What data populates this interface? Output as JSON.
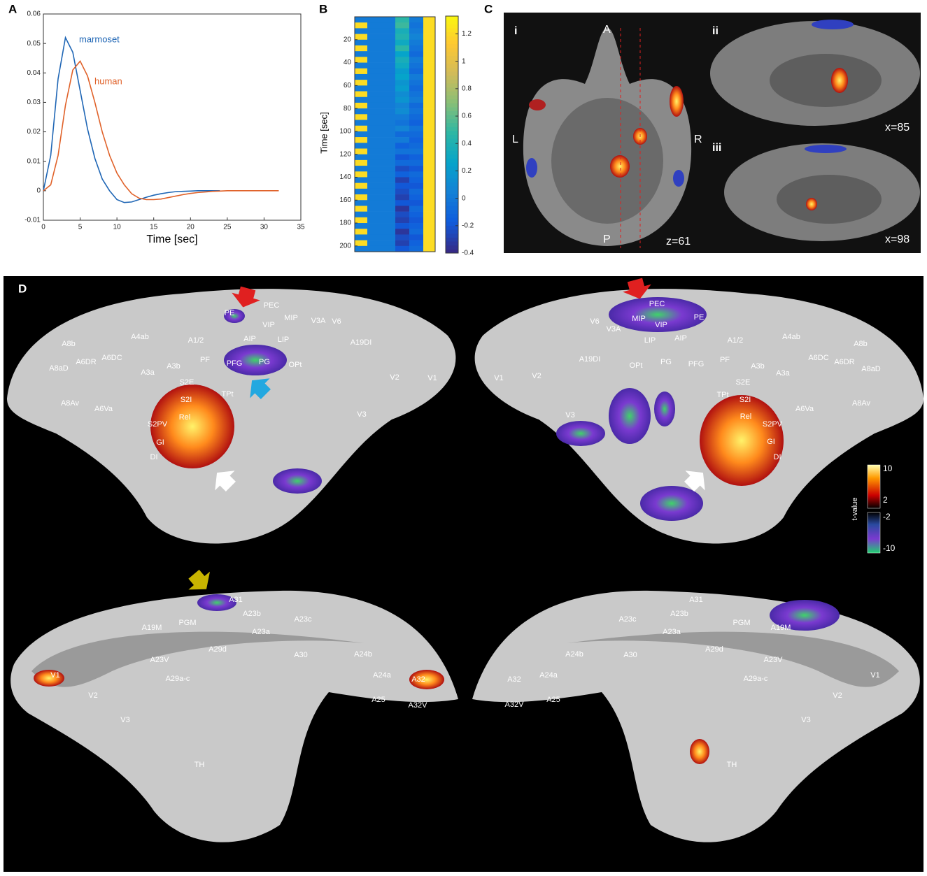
{
  "panel_labels": [
    "A",
    "B",
    "C",
    "D"
  ],
  "chart_data": [
    {
      "type": "line",
      "xlabel": "Time [sec]",
      "xlim": [
        0,
        35
      ],
      "xticks": [
        0,
        5,
        10,
        15,
        20,
        25,
        30,
        35
      ],
      "ylim": [
        -0.01,
        0.06
      ],
      "yticks": [
        -0.01,
        0,
        0.01,
        0.02,
        0.03,
        0.04,
        0.05,
        0.06
      ],
      "x": [
        0,
        1,
        2,
        3,
        4,
        5,
        6,
        7,
        8,
        9,
        10,
        11,
        12,
        13,
        14,
        15,
        16,
        17,
        18,
        19,
        20,
        21,
        22,
        23,
        24,
        25,
        26,
        27,
        28,
        29,
        30,
        31,
        32
      ],
      "series": [
        {
          "name": "marmoset",
          "color": "#1f66b5",
          "values": [
            0,
            0.012,
            0.038,
            0.052,
            0.047,
            0.034,
            0.021,
            0.011,
            0.004,
            0,
            -0.003,
            -0.004,
            -0.0038,
            -0.003,
            -0.0022,
            -0.0015,
            -0.001,
            -0.0006,
            -0.0003,
            -0.0002,
            -0.0001,
            0,
            0,
            0,
            0,
            null,
            null,
            null,
            null,
            null,
            null,
            null,
            null
          ]
        },
        {
          "name": "human",
          "color": "#e0622a",
          "values": [
            0,
            0.002,
            0.012,
            0.029,
            0.041,
            0.044,
            0.039,
            0.03,
            0.02,
            0.012,
            0.006,
            0.002,
            -0.001,
            -0.0025,
            -0.003,
            -0.003,
            -0.0028,
            -0.0023,
            -0.0018,
            -0.0013,
            -0.0009,
            -0.0006,
            -0.0004,
            -0.0002,
            -0.0001,
            0,
            0,
            0,
            0,
            0,
            0,
            0,
            0
          ]
        }
      ]
    },
    {
      "type": "heatmap",
      "ylabel": "Time [sec]",
      "ylim": [
        0,
        205
      ],
      "yticks": [
        20,
        40,
        60,
        80,
        100,
        120,
        140,
        160,
        180,
        200
      ],
      "clim": [
        -0.4,
        1.33
      ],
      "cticks": [
        -0.4,
        -0.2,
        0,
        0.2,
        0.4,
        0.6,
        0.8,
        1,
        1.2
      ],
      "columns": [
        [
          0,
          1.2,
          0,
          1.2,
          0,
          1.2,
          0,
          1.2,
          0,
          1.2,
          0,
          1.2,
          0,
          1.2,
          0,
          1.2,
          0,
          1.2,
          0,
          1.2,
          0,
          1.2,
          0,
          1.2,
          0,
          1.2,
          0,
          1.2,
          0,
          1.2,
          0,
          1.2,
          0,
          1.2,
          0,
          1.2,
          0,
          1.2,
          0,
          1.2,
          0
        ],
        [
          0,
          0,
          0,
          0,
          0,
          0,
          0,
          0,
          0,
          0,
          0,
          0,
          0,
          0,
          0,
          0,
          0,
          0,
          0,
          0,
          0,
          0,
          0,
          0,
          0,
          0,
          0,
          0,
          0,
          0,
          0,
          0,
          0,
          0,
          0,
          0,
          0,
          0,
          0,
          0,
          0
        ],
        [
          0.45,
          0.5,
          0.35,
          0.4,
          0.3,
          0.45,
          0.25,
          0.35,
          0.3,
          0.2,
          0.25,
          0.15,
          0.2,
          0.1,
          0.15,
          0.05,
          0.1,
          0,
          -0.05,
          0.05,
          -0.1,
          0,
          -0.15,
          -0.05,
          -0.2,
          -0.1,
          -0.25,
          -0.15,
          -0.3,
          -0.2,
          -0.25,
          -0.3,
          -0.2,
          -0.35,
          -0.25,
          -0.3,
          -0.2,
          -0.35,
          -0.25,
          -0.3,
          -0.2
        ],
        [
          0,
          -0.05,
          0,
          0.05,
          0,
          -0.05,
          -0.1,
          0,
          -0.05,
          -0.1,
          0,
          -0.05,
          -0.1,
          -0.05,
          0,
          -0.1,
          -0.05,
          -0.1,
          -0.15,
          -0.05,
          -0.1,
          -0.15,
          -0.1,
          -0.05,
          -0.15,
          -0.1,
          -0.2,
          -0.1,
          -0.15,
          -0.2,
          -0.1,
          -0.15,
          -0.2,
          -0.1,
          -0.15,
          -0.2,
          -0.15,
          -0.1,
          -0.2,
          -0.15,
          -0.1
        ],
        [
          1.2,
          1.2,
          1.2,
          1.2,
          1.2,
          1.2,
          1.2,
          1.2,
          1.2,
          1.2,
          1.2,
          1.2,
          1.2,
          1.2,
          1.2,
          1.2,
          1.2,
          1.2,
          1.2,
          1.2,
          1.2,
          1.2,
          1.2,
          1.2,
          1.2,
          1.2,
          1.2,
          1.2,
          1.2,
          1.2,
          1.2,
          1.2,
          1.2,
          1.2,
          1.2,
          1.2,
          1.2,
          1.2,
          1.2,
          1.2,
          1.2
        ]
      ]
    }
  ],
  "panel_c": {
    "views": [
      "i",
      "ii",
      "iii"
    ],
    "orientation": [
      "A",
      "P",
      "L",
      "R"
    ],
    "slices": [
      "z=61",
      "x=85",
      "x=98"
    ]
  },
  "panel_d": {
    "hemispheres": [
      {
        "labels": [
          "PE",
          "PEC",
          "MIP",
          "VIP",
          "V3A",
          "V6",
          "AIP",
          "LIP",
          "A1/2",
          "PF",
          "PFG",
          "PG",
          "OPt",
          "A19DI",
          "V2",
          "V1",
          "A8b",
          "A4ab",
          "A8aD",
          "A6DR",
          "A6DC",
          "A3a",
          "A3b",
          "S2E",
          "S2I",
          "TPt",
          "Rel",
          "S2PV",
          "GI",
          "DI",
          "A6Va",
          "A8Av",
          "V3"
        ]
      },
      {
        "labels": [
          "PEC",
          "MIP",
          "VIP",
          "PE",
          "V6",
          "V3A",
          "LIP",
          "AIP",
          "A1/2",
          "A4ab",
          "A8b",
          "A19DI",
          "OPt",
          "PG",
          "PFG",
          "PF",
          "A3b",
          "A6DC",
          "A6DR",
          "A8aD",
          "A3a",
          "V1",
          "V2",
          "S2E",
          "TPt",
          "S2I",
          "Rel",
          "S2PV",
          "A6Va",
          "A8Av",
          "GI",
          "DI",
          "V3"
        ]
      },
      {
        "labels": [
          "A31",
          "A23b",
          "A23c",
          "A19M",
          "PGM",
          "A23a",
          "A29d",
          "A30",
          "A24b",
          "A23V",
          "V1",
          "A24a",
          "A32",
          "A29a-c",
          "A25",
          "A32V",
          "V2",
          "V3",
          "TH"
        ]
      },
      {
        "labels": [
          "A31",
          "A23b",
          "A23c",
          "PGM",
          "A19M",
          "A23a",
          "A29d",
          "A24b",
          "A30",
          "A23V",
          "V1",
          "A32",
          "A24a",
          "A29a-c",
          "A25",
          "A32V",
          "V2",
          "V3",
          "TH"
        ]
      }
    ],
    "colorbar_label": "t-value",
    "colorbar_ticks": [
      10,
      2,
      -2,
      -10
    ]
  }
}
